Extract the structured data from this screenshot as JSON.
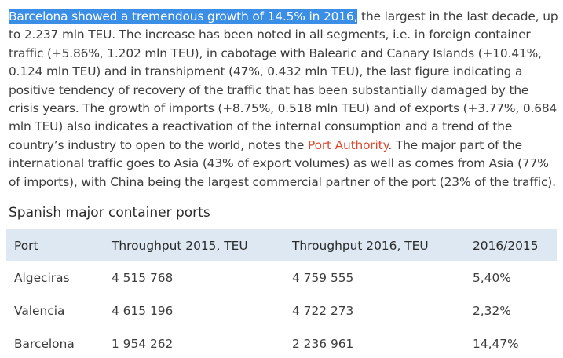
{
  "article": {
    "highlighted": "Barcelona showed a tremendous growth of 14.5% in 2016,",
    "text_before_link": " the largest in the last decade, up to 2.237 mln TEU. The increase has been noted in all segments, i.e. in foreign container traffic (+5.86%, 1.202 mln TEU), in cabotage with Balearic and Canary Islands (+10.41%, 0.124 mln TEU) and in transhipment (47%, 0.432 mln TEU), the last figure indicating a positive tendency of recovery of the traffic that has been substantially damaged by the crisis years.  The growth of imports (+8.75%, 0.518 mln TEU) and of exports (+3.77%, 0.684 mln TEU) also indicates a reactivation of the internal consumption and a trend of the country’s industry to open to the world, notes the ",
    "link_text": "Port Authority",
    "text_after_link": ". The major part of the international traffic goes to Asia (43% of export volumes) as well as comes from Asia (77% of imports), with China being the largest commercial partner of the port (23% of the traffic).",
    "link_color": "#d94a2e",
    "highlight_color": "#3a8ee6"
  },
  "section_title": "Spanish major container ports",
  "table": {
    "headers": [
      "Port",
      "Throughput 2015, TEU",
      "Throughput 2016, TEU",
      "2016/2015"
    ],
    "rows": [
      [
        "Algeciras",
        "4 515 768",
        "4 759 555",
        "5,40%"
      ],
      [
        "Valencia",
        "4 615 196",
        "4 722 273",
        "2,32%"
      ],
      [
        "Barcelona",
        "1 954 262",
        "2 236 961",
        "14,47%"
      ]
    ],
    "header_bg": "#dde8f2"
  }
}
